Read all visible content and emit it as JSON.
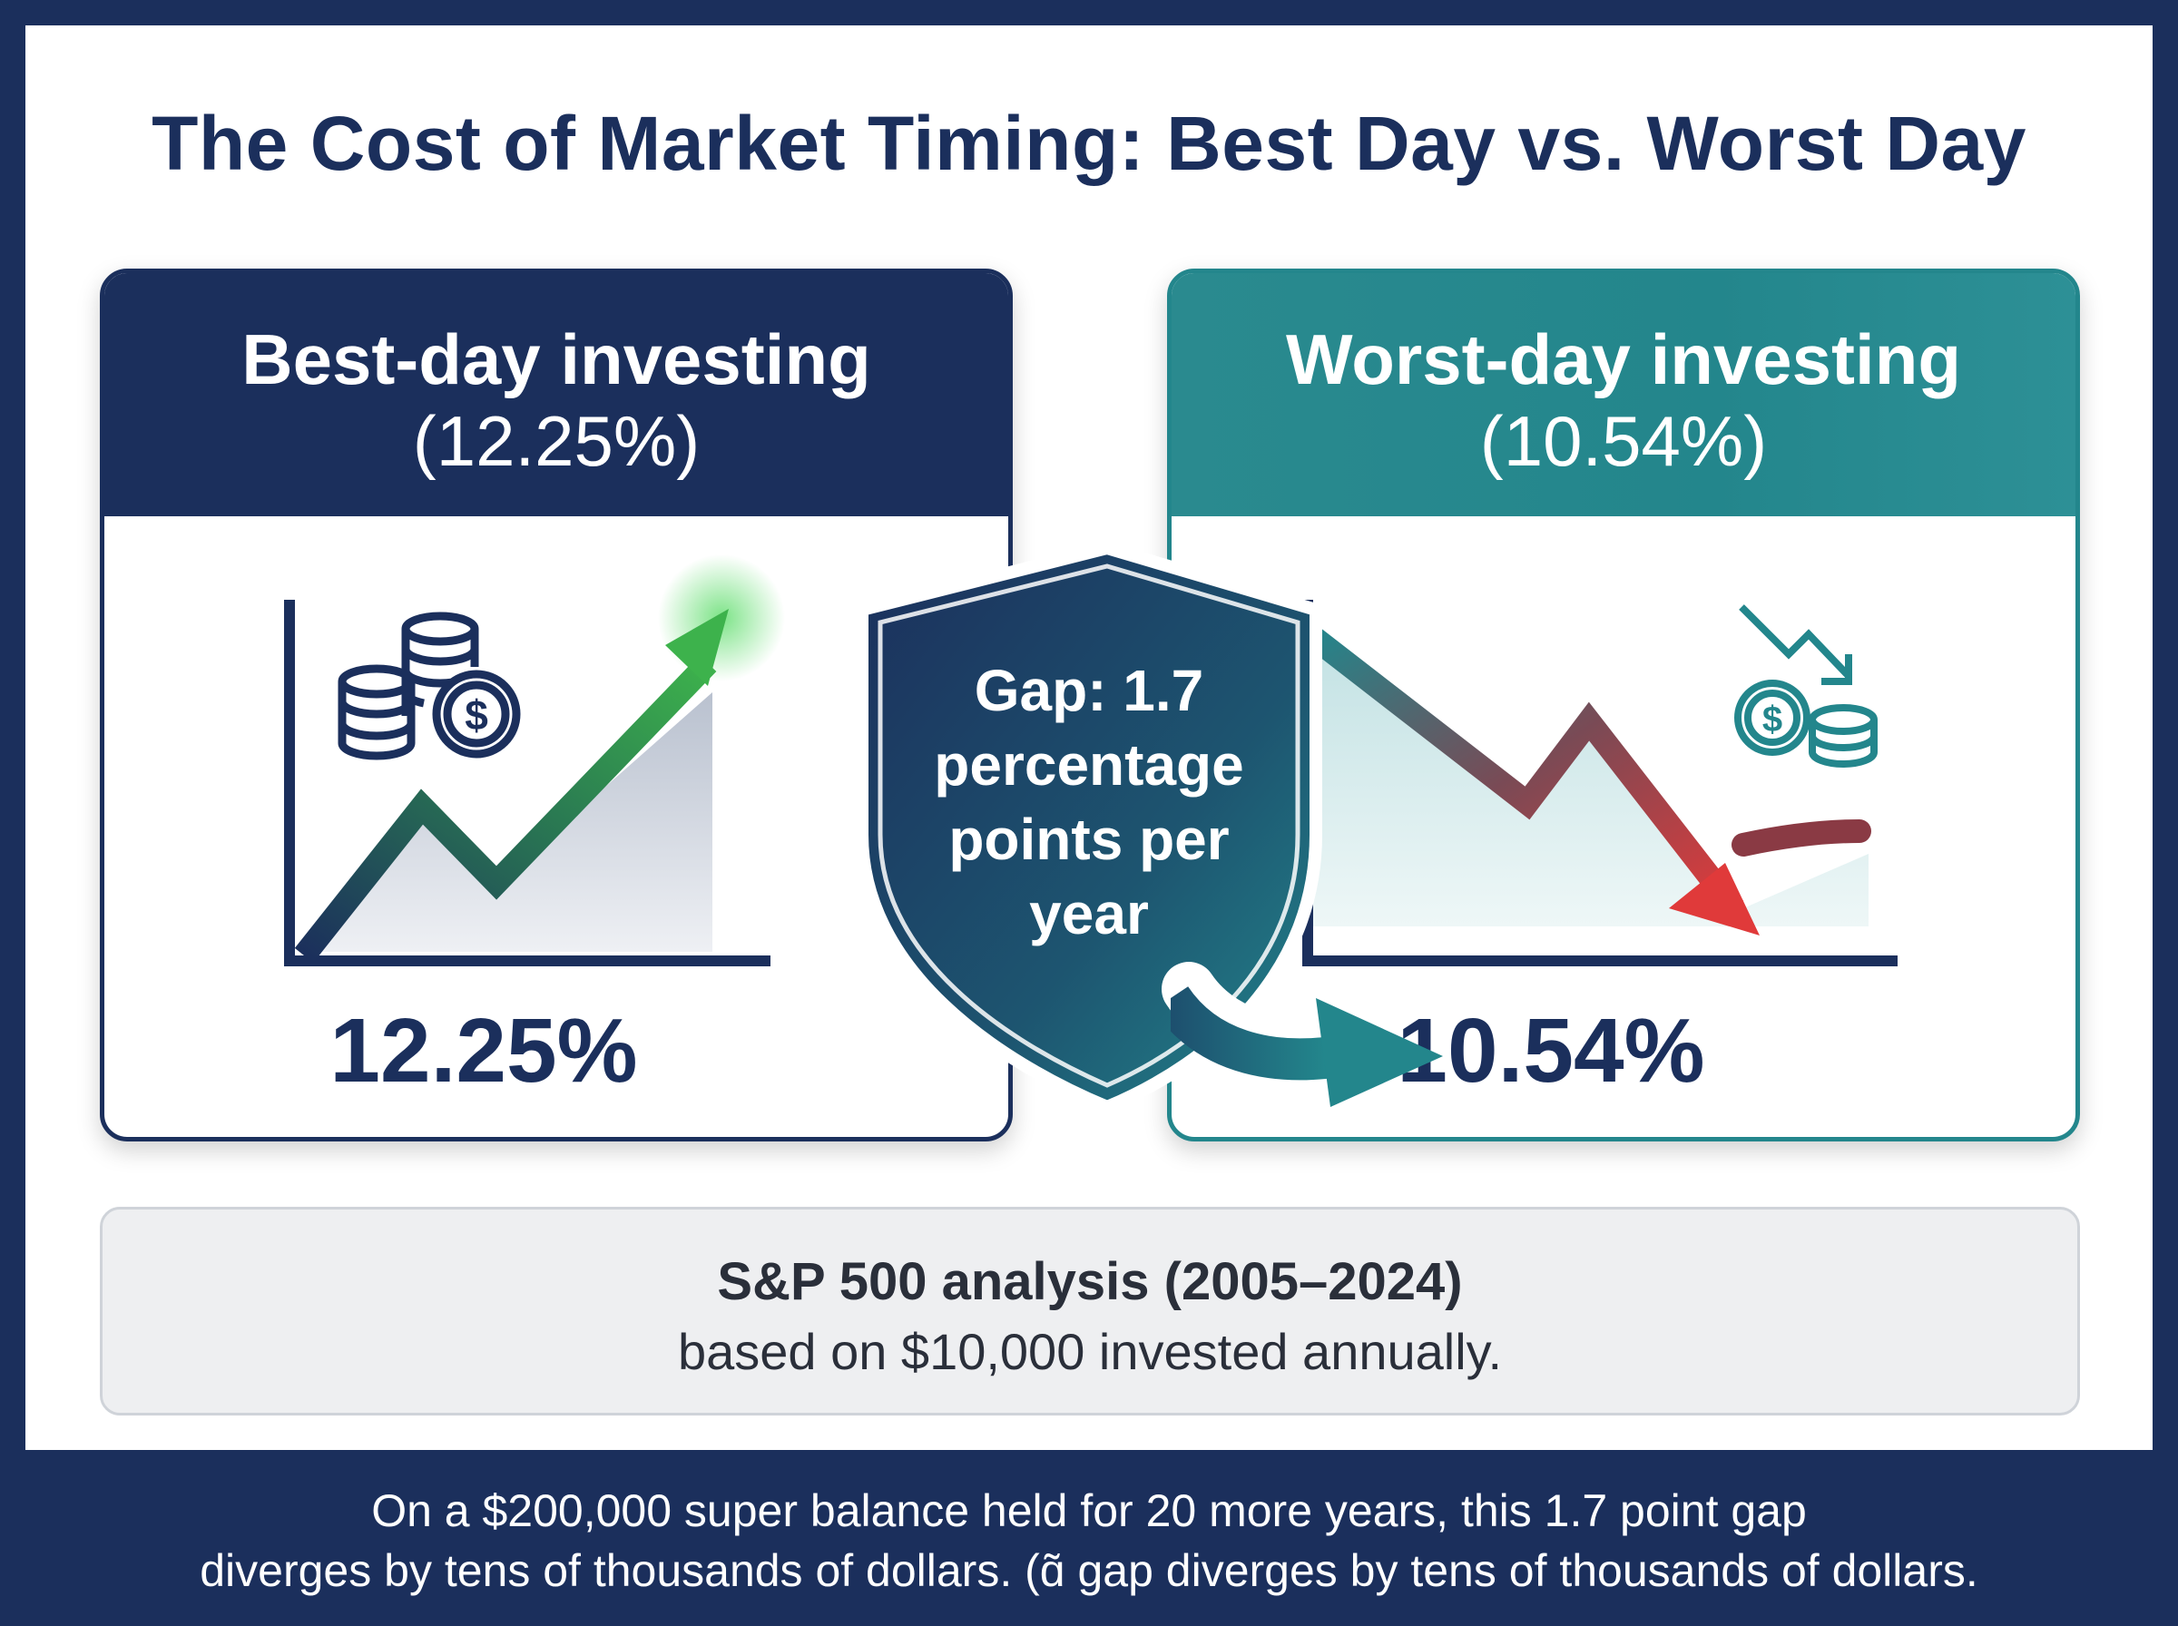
{
  "title": "The Cost of Market Timing: Best Day vs. Worst Day",
  "best_card": {
    "heading": "Best-day investing",
    "heading_value": "(12.25%)",
    "value": "12.25%",
    "icon": "coins-dollar-icon",
    "trend": "up"
  },
  "worst_card": {
    "heading": "Worst-day investing",
    "heading_value": "(10.54%)",
    "value": "10.54%",
    "icon": "coins-dollar-down-icon",
    "trend": "down"
  },
  "gap_badge": {
    "lines": [
      "Gap: 1.7",
      "percentage",
      "points per",
      "year"
    ]
  },
  "note": {
    "line1": "S&P 500 analysis (2005–2024)",
    "line2": "based on $10,000 invested annually."
  },
  "footer": {
    "line1": "On a $200,000 super balance held for 20 more years, this 1.7 point gap",
    "line2": "diverges by tens of thousands of dollars. (ɑ̃ gap diverges by tens of thousands of dollars."
  },
  "colors": {
    "navy": "#1b2f5c",
    "teal": "#23868c",
    "green": "#3aa14a",
    "red": "#e03a3a"
  }
}
